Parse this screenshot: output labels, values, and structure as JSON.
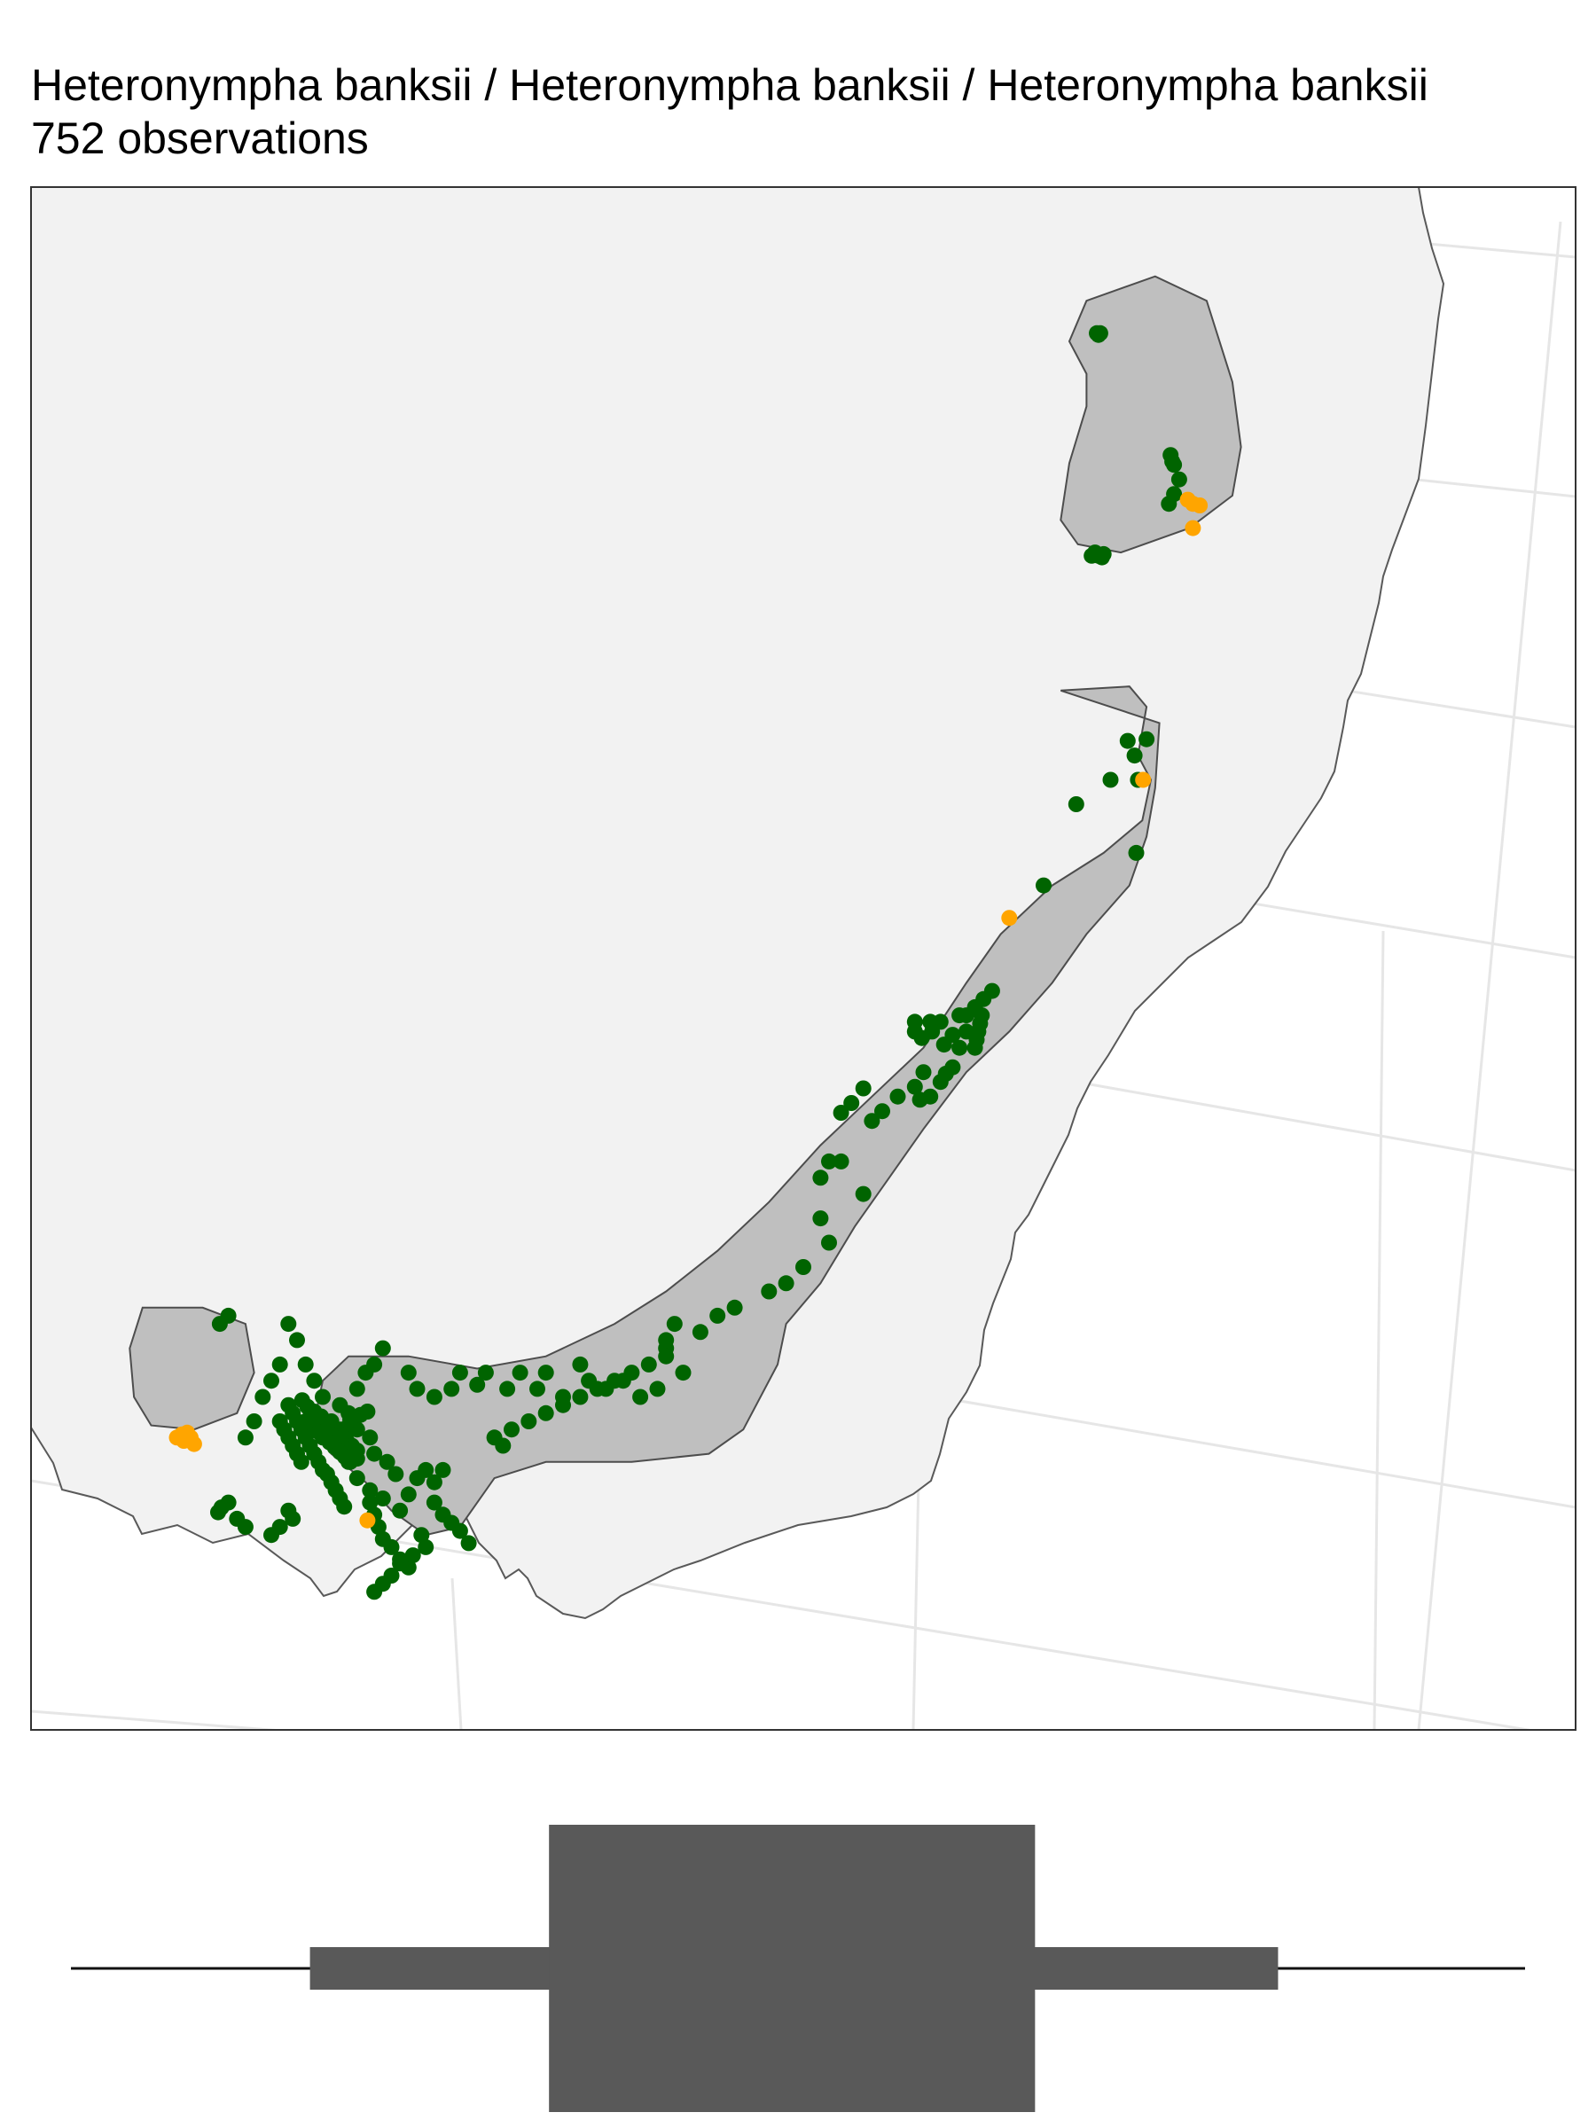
{
  "title": "Heteronympha banksii / Heteronympha banksii / Heteronympha banksii",
  "subtitle": "752 observations",
  "colors": {
    "land": "#f2f2f2",
    "range": "#bfbfbf",
    "range_stroke": "#4d4d4d",
    "coast": "#595959",
    "graticule": "#e6e6e6",
    "observation": "#006400",
    "outlier": "#ffa500",
    "seasonality": "#595959"
  },
  "map": {
    "extent_km": {
      "x": [
        -900,
        900
      ],
      "y": [
        -950,
        950
      ]
    },
    "range_polygons": [
      {
        "name": "northern-range",
        "points": [
          [
            1230,
            -1280
          ],
          [
            1310,
            -1310
          ],
          [
            1370,
            -1280
          ],
          [
            1400,
            -1180
          ],
          [
            1410,
            -1100
          ],
          [
            1400,
            -1040
          ],
          [
            1350,
            -1000
          ],
          [
            1270,
            -970
          ],
          [
            1220,
            -980
          ],
          [
            1200,
            -1010
          ],
          [
            1210,
            -1080
          ],
          [
            1230,
            -1150
          ],
          [
            1230,
            -1190
          ],
          [
            1210,
            -1230
          ]
        ]
      },
      {
        "name": "southern-range",
        "points": [
          [
            1200,
            -800
          ],
          [
            1280,
            -805
          ],
          [
            1300,
            -780
          ],
          [
            1290,
            -720
          ],
          [
            1305,
            -690
          ],
          [
            1295,
            -640
          ],
          [
            1250,
            -600
          ],
          [
            1190,
            -560
          ],
          [
            1130,
            -500
          ],
          [
            1090,
            -440
          ],
          [
            1040,
            -360
          ],
          [
            980,
            -300
          ],
          [
            920,
            -240
          ],
          [
            860,
            -170
          ],
          [
            800,
            -110
          ],
          [
            740,
            -60
          ],
          [
            680,
            -20
          ],
          [
            600,
            20
          ],
          [
            520,
            35
          ],
          [
            440,
            20
          ],
          [
            370,
            20
          ],
          [
            340,
            50
          ],
          [
            330,
            100
          ],
          [
            350,
            140
          ],
          [
            390,
            175
          ],
          [
            420,
            210
          ],
          [
            460,
            240
          ],
          [
            500,
            230
          ],
          [
            540,
            170
          ],
          [
            600,
            150
          ],
          [
            700,
            150
          ],
          [
            790,
            140
          ],
          [
            830,
            110
          ],
          [
            870,
            30
          ],
          [
            880,
            -20
          ],
          [
            920,
            -70
          ],
          [
            960,
            -140
          ],
          [
            1000,
            -200
          ],
          [
            1040,
            -260
          ],
          [
            1090,
            -330
          ],
          [
            1140,
            -380
          ],
          [
            1190,
            -440
          ],
          [
            1230,
            -500
          ],
          [
            1280,
            -560
          ],
          [
            1300,
            -620
          ],
          [
            1310,
            -680
          ],
          [
            1315,
            -760
          ]
        ]
      },
      {
        "name": "western-range",
        "points": [
          [
            130,
            -40
          ],
          [
            200,
            -40
          ],
          [
            250,
            -20
          ],
          [
            260,
            40
          ],
          [
            240,
            90
          ],
          [
            190,
            110
          ],
          [
            140,
            105
          ],
          [
            120,
            70
          ],
          [
            115,
            10
          ]
        ]
      }
    ],
    "observations": [
      [
        1242,
        -1240
      ],
      [
        1244,
        -1238
      ],
      [
        1246,
        -1240
      ],
      [
        1328,
        -1090
      ],
      [
        1330,
        -1082
      ],
      [
        1332,
        -1078
      ],
      [
        1338,
        -1060
      ],
      [
        1332,
        -1042
      ],
      [
        1326,
        -1030
      ],
      [
        1240,
        -970
      ],
      [
        1244,
        -966
      ],
      [
        1250,
        -968
      ],
      [
        1248,
        -964
      ],
      [
        1236,
        -966
      ],
      [
        1300,
        -740
      ],
      [
        1278,
        -738
      ],
      [
        1286,
        -720
      ],
      [
        1290,
        -690
      ],
      [
        1258,
        -690
      ],
      [
        1218,
        -660
      ],
      [
        1288,
        -600
      ],
      [
        1180,
        -560
      ],
      [
        1120,
        -430
      ],
      [
        1110,
        -420
      ],
      [
        1100,
        -410
      ],
      [
        1090,
        -400
      ],
      [
        1082,
        -400
      ],
      [
        1060,
        -392
      ],
      [
        1048,
        -392
      ],
      [
        1030,
        -392
      ],
      [
        1030,
        -380
      ],
      [
        1038,
        -372
      ],
      [
        1050,
        -380
      ],
      [
        1064,
        -364
      ],
      [
        1074,
        -376
      ],
      [
        1108,
        -400
      ],
      [
        1106,
        -390
      ],
      [
        1104,
        -380
      ],
      [
        1102,
        -370
      ],
      [
        1100,
        -360
      ],
      [
        1090,
        -380
      ],
      [
        1082,
        -360
      ],
      [
        1074,
        -336
      ],
      [
        1066,
        -328
      ],
      [
        1060,
        -318
      ],
      [
        1048,
        -300
      ],
      [
        1036,
        -296
      ],
      [
        1030,
        -312
      ],
      [
        1040,
        -330
      ],
      [
        1010,
        -300
      ],
      [
        992,
        -282
      ],
      [
        970,
        -310
      ],
      [
        980,
        -270
      ],
      [
        956,
        -292
      ],
      [
        944,
        -280
      ],
      [
        930,
        -220
      ],
      [
        944,
        -220
      ],
      [
        920,
        -200
      ],
      [
        970,
        -180
      ],
      [
        920,
        -150
      ],
      [
        930,
        -120
      ],
      [
        900,
        -90
      ],
      [
        880,
        -70
      ],
      [
        860,
        -60
      ],
      [
        820,
        -40
      ],
      [
        800,
        -30
      ],
      [
        780,
        -10
      ],
      [
        750,
        -20
      ],
      [
        740,
        10
      ],
      [
        740,
        0
      ],
      [
        760,
        40
      ],
      [
        730,
        60
      ],
      [
        710,
        70
      ],
      [
        690,
        50
      ],
      [
        670,
        60
      ],
      [
        650,
        50
      ],
      [
        640,
        30
      ],
      [
        620,
        70
      ],
      [
        600,
        40
      ],
      [
        590,
        60
      ],
      [
        570,
        40
      ],
      [
        555,
        60
      ],
      [
        530,
        40
      ],
      [
        520,
        55
      ],
      [
        500,
        40
      ],
      [
        490,
        60
      ],
      [
        470,
        70
      ],
      [
        450,
        60
      ],
      [
        440,
        40
      ],
      [
        410,
        10
      ],
      [
        400,
        30
      ],
      [
        390,
        40
      ],
      [
        380,
        60
      ],
      [
        370,
        90
      ],
      [
        360,
        80
      ],
      [
        350,
        100
      ],
      [
        340,
        70
      ],
      [
        330,
        50
      ],
      [
        320,
        30
      ],
      [
        310,
        0
      ],
      [
        300,
        -20
      ],
      [
        290,
        30
      ],
      [
        280,
        50
      ],
      [
        270,
        70
      ],
      [
        260,
        100
      ],
      [
        250,
        120
      ],
      [
        230,
        -30
      ],
      [
        220,
        -20
      ],
      [
        320,
        100
      ],
      [
        330,
        110
      ],
      [
        340,
        120
      ],
      [
        355,
        130
      ],
      [
        370,
        150
      ],
      [
        380,
        170
      ],
      [
        395,
        185
      ],
      [
        410,
        195
      ],
      [
        430,
        210
      ],
      [
        440,
        190
      ],
      [
        450,
        170
      ],
      [
        460,
        160
      ],
      [
        470,
        175
      ],
      [
        480,
        160
      ],
      [
        380,
        110
      ],
      [
        395,
        120
      ],
      [
        400,
        140
      ],
      [
        415,
        150
      ],
      [
        425,
        165
      ],
      [
        360,
        110
      ],
      [
        368,
        108
      ],
      [
        372,
        98
      ],
      [
        384,
        92
      ],
      [
        392,
        88
      ],
      [
        316,
        74
      ],
      [
        322,
        82
      ],
      [
        330,
        88
      ],
      [
        338,
        94
      ],
      [
        344,
        100
      ],
      [
        350,
        106
      ],
      [
        356,
        112
      ],
      [
        362,
        118
      ],
      [
        368,
        124
      ],
      [
        374,
        130
      ],
      [
        380,
        136
      ],
      [
        326,
        92
      ],
      [
        332,
        98
      ],
      [
        338,
        104
      ],
      [
        344,
        110
      ],
      [
        350,
        116
      ],
      [
        356,
        122
      ],
      [
        362,
        128
      ],
      [
        368,
        134
      ],
      [
        374,
        140
      ],
      [
        380,
        146
      ],
      [
        336,
        114
      ],
      [
        342,
        120
      ],
      [
        348,
        126
      ],
      [
        354,
        132
      ],
      [
        360,
        138
      ],
      [
        366,
        144
      ],
      [
        372,
        150
      ],
      [
        300,
        80
      ],
      [
        305,
        90
      ],
      [
        310,
        100
      ],
      [
        315,
        110
      ],
      [
        320,
        120
      ],
      [
        325,
        130
      ],
      [
        330,
        140
      ],
      [
        335,
        150
      ],
      [
        340,
        160
      ],
      [
        290,
        100
      ],
      [
        295,
        110
      ],
      [
        300,
        120
      ],
      [
        305,
        130
      ],
      [
        310,
        140
      ],
      [
        315,
        150
      ],
      [
        345,
        165
      ],
      [
        350,
        175
      ],
      [
        355,
        185
      ],
      [
        360,
        195
      ],
      [
        365,
        205
      ],
      [
        395,
        200
      ],
      [
        400,
        215
      ],
      [
        405,
        230
      ],
      [
        410,
        245
      ],
      [
        420,
        255
      ],
      [
        430,
        270
      ],
      [
        440,
        280
      ],
      [
        470,
        200
      ],
      [
        480,
        215
      ],
      [
        490,
        225
      ],
      [
        500,
        235
      ],
      [
        510,
        250
      ],
      [
        455,
        240
      ],
      [
        460,
        255
      ],
      [
        445,
        265
      ],
      [
        430,
        275
      ],
      [
        420,
        290
      ],
      [
        410,
        300
      ],
      [
        400,
        310
      ],
      [
        300,
        210
      ],
      [
        305,
        220
      ],
      [
        290,
        230
      ],
      [
        280,
        240
      ],
      [
        230,
        200
      ],
      [
        222,
        206
      ],
      [
        218,
        212
      ],
      [
        240,
        220
      ],
      [
        250,
        230
      ],
      [
        540,
        120
      ],
      [
        550,
        130
      ],
      [
        560,
        110
      ],
      [
        580,
        100
      ],
      [
        600,
        90
      ],
      [
        620,
        80
      ],
      [
        640,
        70
      ],
      [
        660,
        60
      ],
      [
        680,
        50
      ],
      [
        700,
        40
      ],
      [
        720,
        30
      ],
      [
        740,
        20
      ]
    ],
    "outliers": [
      [
        1348,
        -1035
      ],
      [
        1354,
        -1030
      ],
      [
        1362,
        -1028
      ],
      [
        1354,
        -1000
      ],
      [
        1296,
        -690
      ],
      [
        1140,
        -520
      ],
      [
        170,
        120
      ],
      [
        176,
        116
      ],
      [
        182,
        114
      ],
      [
        186,
        120
      ],
      [
        190,
        128
      ],
      [
        178,
        124
      ],
      [
        392,
        222
      ]
    ]
  },
  "seasonality": {
    "months_axis": "day-of-year",
    "whisker_low": 1,
    "q1_outer": 61,
    "q1_inner": 121,
    "median": 182,
    "q3_inner": 243,
    "q3_outer": 304,
    "whisker_high": 366
  }
}
